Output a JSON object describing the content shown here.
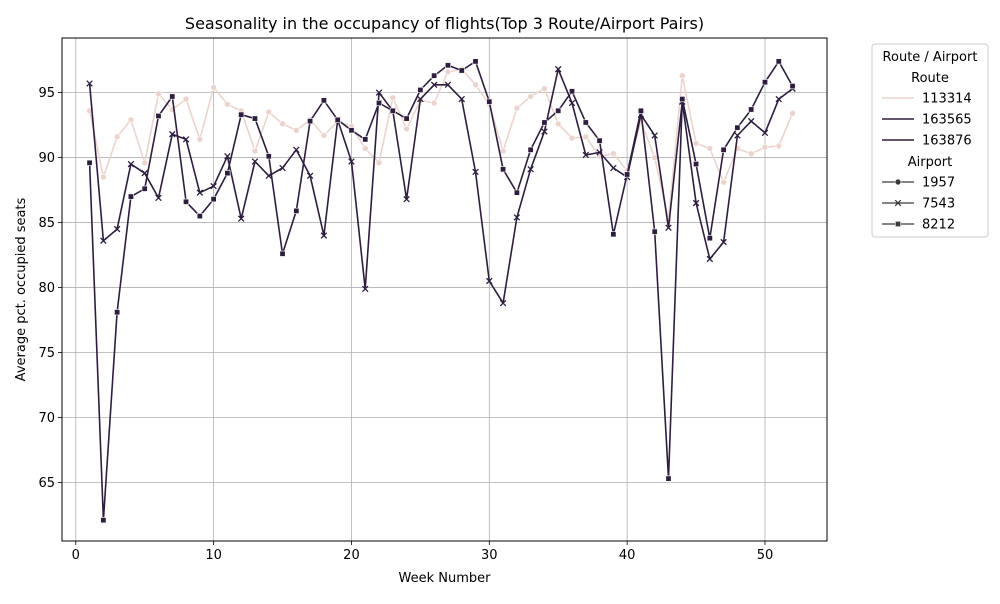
{
  "chart_data": {
    "type": "line",
    "title": "Seasonality in the occupancy of flights(Top 3 Route/Airport Pairs)",
    "xlabel": "Week Number",
    "ylabel": "Average pct. occupied seats",
    "xlim": [
      -1,
      54.5
    ],
    "ylim": [
      60.5,
      99.2
    ],
    "xticks": [
      0,
      10,
      20,
      30,
      40,
      50
    ],
    "yticks": [
      65,
      70,
      75,
      80,
      85,
      90,
      95
    ],
    "grid": true,
    "legend": {
      "title": "Route / Airport",
      "placement": "outside-top-right",
      "hue_title": "Route",
      "style_title": "Airport",
      "hue_entries": [
        "113314",
        "163565",
        "163876"
      ],
      "style_entries": [
        {
          "label": "1957",
          "marker": "circle"
        },
        {
          "label": "7543",
          "marker": "x"
        },
        {
          "label": "8212",
          "marker": "square"
        }
      ]
    },
    "series": [
      {
        "route": "113314",
        "airport": "1957",
        "color": "#ecd4ce",
        "marker": "circle",
        "x": [
          1,
          2,
          3,
          4,
          5,
          6,
          7,
          8,
          9,
          10,
          11,
          12,
          13,
          14,
          15,
          16,
          17,
          18,
          19,
          20,
          21,
          22,
          23,
          24,
          25,
          26,
          27,
          28,
          29,
          30,
          31,
          32,
          33,
          34,
          35,
          36,
          37,
          38,
          39,
          40,
          41,
          42,
          43,
          44,
          45,
          46,
          47,
          48,
          49,
          50,
          51,
          52
        ],
        "y": [
          93.6,
          88.5,
          91.6,
          92.9,
          89.6,
          94.9,
          93.7,
          94.5,
          91.4,
          95.4,
          94.1,
          93.6,
          90.5,
          93.5,
          92.6,
          92.1,
          92.9,
          91.7,
          92.8,
          92.4,
          90.7,
          89.6,
          94.6,
          92.2,
          94.4,
          94.2,
          96.6,
          96.8,
          95.6,
          94.1,
          90.5,
          93.8,
          94.7,
          95.3,
          92.6,
          91.5,
          91.6,
          90.1,
          90.3,
          89.0,
          92.8,
          90.0,
          85.2,
          96.3,
          91.1,
          90.7,
          88.1,
          90.7,
          90.3,
          90.8,
          90.9,
          93.4
        ]
      },
      {
        "route": "163565",
        "airport": "7543",
        "color": "#2d1e3e",
        "marker": "x",
        "x": [
          1,
          2,
          3,
          4,
          5,
          6,
          7,
          8,
          9,
          10,
          11,
          12,
          13,
          14,
          15,
          16,
          17,
          18,
          19,
          20,
          21,
          22,
          23,
          24,
          25,
          26,
          27,
          28,
          29,
          30,
          31,
          32,
          33,
          34,
          35,
          36,
          37,
          38,
          39,
          40,
          41,
          42,
          43,
          44,
          45,
          46,
          47,
          48,
          49,
          50,
          51,
          52
        ],
        "y": [
          95.7,
          83.6,
          84.5,
          89.5,
          88.8,
          86.9,
          91.8,
          91.4,
          87.3,
          87.8,
          90.1,
          85.3,
          89.7,
          88.6,
          89.2,
          90.6,
          88.6,
          84.0,
          92.9,
          89.7,
          79.9,
          95.0,
          93.6,
          86.8,
          94.5,
          95.6,
          95.6,
          94.5,
          88.9,
          80.5,
          78.8,
          85.4,
          89.1,
          92.0,
          96.8,
          94.2,
          90.2,
          90.4,
          89.2,
          88.5,
          93.3,
          91.7,
          84.6,
          94.3,
          86.5,
          82.2,
          83.5,
          91.7,
          92.8,
          91.9,
          94.5,
          95.3
        ]
      },
      {
        "route": "163876",
        "airport": "8212",
        "color": "#2d1e3e",
        "marker": "square",
        "x": [
          1,
          2,
          3,
          4,
          5,
          6,
          7,
          8,
          9,
          10,
          11,
          12,
          13,
          14,
          15,
          16,
          17,
          18,
          19,
          20,
          21,
          22,
          23,
          24,
          25,
          26,
          27,
          28,
          29,
          30,
          31,
          32,
          33,
          34,
          35,
          36,
          37,
          38,
          39,
          40,
          41,
          42,
          43,
          44,
          45,
          46,
          47,
          48,
          49,
          50,
          51,
          52
        ],
        "y": [
          89.6,
          62.1,
          78.1,
          87.0,
          87.6,
          93.2,
          94.7,
          86.6,
          85.5,
          86.8,
          88.8,
          93.3,
          93.0,
          90.1,
          82.6,
          85.9,
          92.8,
          94.4,
          92.9,
          92.1,
          91.4,
          94.2,
          93.6,
          93.0,
          95.2,
          96.3,
          97.1,
          96.7,
          97.4,
          94.3,
          89.1,
          87.3,
          90.6,
          92.7,
          93.6,
          95.1,
          92.7,
          91.3,
          84.1,
          88.7,
          93.6,
          84.3,
          65.3,
          94.5,
          89.5,
          83.8,
          90.6,
          92.3,
          93.7,
          95.8,
          97.4,
          95.5
        ]
      }
    ]
  }
}
